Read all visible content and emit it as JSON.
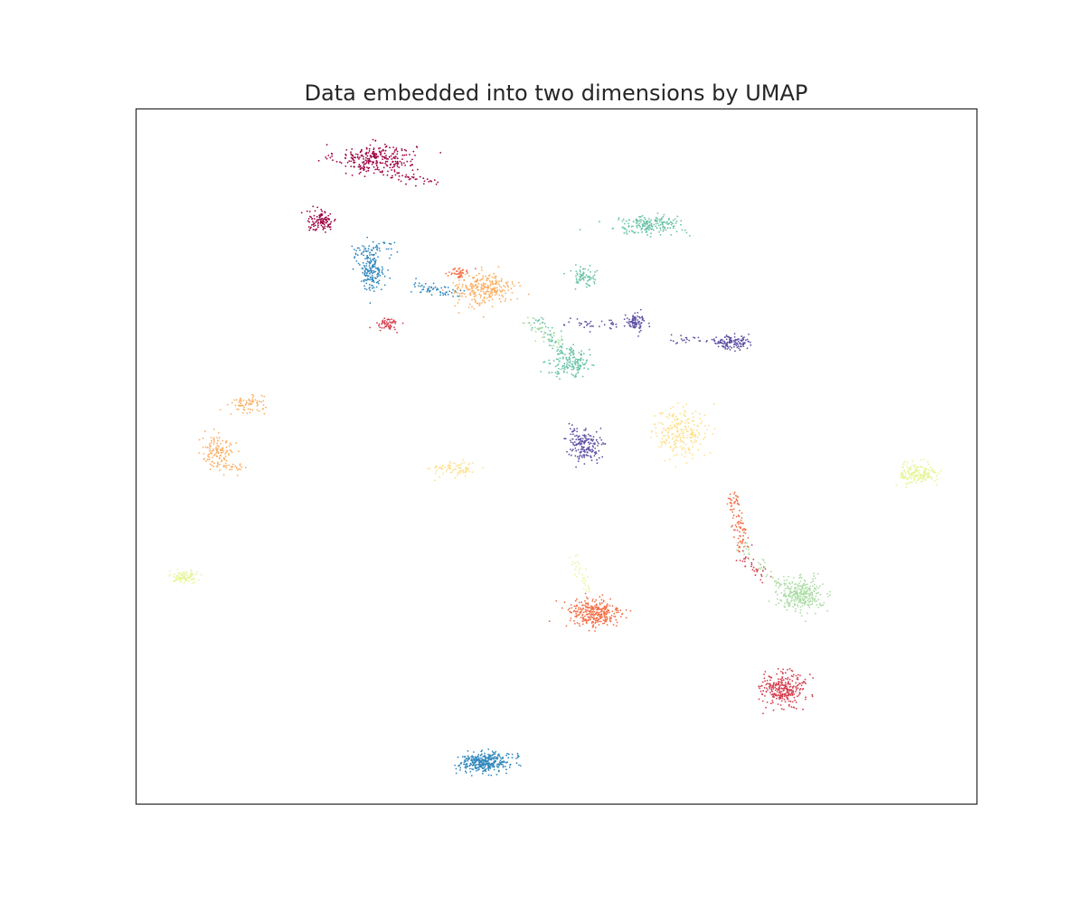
{
  "chart_data": {
    "type": "scatter",
    "title": "Data embedded into two dimensions by UMAP",
    "xlabel": "",
    "ylabel": "",
    "xlim": [
      0,
      100
    ],
    "ylim": [
      0,
      100
    ],
    "ticks": "none",
    "grid": false,
    "legend": "none",
    "colormap": "Spectral",
    "clusters": [
      {
        "color": "#9e0142",
        "shape": "blob",
        "center": [
          28.5,
          93.0
        ],
        "spread": [
          3.2,
          1.3
        ],
        "count": 260
      },
      {
        "color": "#9e0142",
        "shape": "streak",
        "from": [
          26.0,
          91.5
        ],
        "to": [
          36.0,
          89.5
        ],
        "width": 0.4,
        "count": 60
      },
      {
        "color": "#9e0142",
        "shape": "blob",
        "center": [
          22.0,
          83.9
        ],
        "spread": [
          1.2,
          1.0
        ],
        "count": 110
      },
      {
        "color": "#3288bd",
        "shape": "blob",
        "center": [
          28.0,
          77.0
        ],
        "spread": [
          1.0,
          2.0
        ],
        "count": 180
      },
      {
        "color": "#3288bd",
        "shape": "streak",
        "from": [
          26.5,
          79.5
        ],
        "to": [
          30.5,
          80.5
        ],
        "width": 0.5,
        "count": 40
      },
      {
        "color": "#3288bd",
        "shape": "streak",
        "from": [
          33.0,
          74.5
        ],
        "to": [
          38.5,
          73.5
        ],
        "width": 0.4,
        "count": 60
      },
      {
        "color": "#3288bd",
        "shape": "blob",
        "center": [
          41.4,
          5.8
        ],
        "spread": [
          2.0,
          0.9
        ],
        "count": 330
      },
      {
        "color": "#3288bd",
        "shape": "streak",
        "from": [
          43.0,
          6.5
        ],
        "to": [
          45.6,
          6.9
        ],
        "width": 0.25,
        "count": 15
      },
      {
        "color": "#fdae61",
        "shape": "blob",
        "center": [
          41.5,
          74.2
        ],
        "spread": [
          2.4,
          1.6
        ],
        "count": 260
      },
      {
        "color": "#fdae61",
        "shape": "blob",
        "center": [
          13.3,
          57.5
        ],
        "spread": [
          1.6,
          0.9
        ],
        "count": 70
      },
      {
        "color": "#fdae61",
        "shape": "blob",
        "center": [
          9.5,
          50.5
        ],
        "spread": [
          1.3,
          1.9
        ],
        "count": 120
      },
      {
        "color": "#fdae61",
        "shape": "streak",
        "from": [
          9.5,
          48.5
        ],
        "to": [
          12.9,
          48.1
        ],
        "width": 0.3,
        "count": 25
      },
      {
        "color": "#f46d43",
        "shape": "blob",
        "center": [
          38.5,
          76.5
        ],
        "spread": [
          0.8,
          0.5
        ],
        "count": 40
      },
      {
        "color": "#f46d43",
        "shape": "blob",
        "center": [
          54.5,
          27.3
        ],
        "spread": [
          2.2,
          1.5
        ],
        "count": 300
      },
      {
        "color": "#f46d43",
        "shape": "streak",
        "from": [
          71.0,
          44.2
        ],
        "to": [
          72.3,
          36.5
        ],
        "width": 0.45,
        "count": 90
      },
      {
        "color": "#d53e4f",
        "shape": "blob",
        "center": [
          30.0,
          69.0
        ],
        "spread": [
          0.9,
          0.7
        ],
        "count": 55
      },
      {
        "color": "#d53e4f",
        "shape": "blob",
        "center": [
          77.0,
          16.5
        ],
        "spread": [
          1.7,
          1.6
        ],
        "count": 280
      },
      {
        "color": "#d53e4f",
        "shape": "streak",
        "from": [
          71.8,
          36.0
        ],
        "to": [
          74.6,
          32.5
        ],
        "width": 0.5,
        "count": 35
      },
      {
        "color": "#66c2a5",
        "shape": "blob",
        "center": [
          61.0,
          83.3
        ],
        "spread": [
          2.8,
          0.9
        ],
        "count": 190
      },
      {
        "color": "#66c2a5",
        "shape": "blob",
        "center": [
          53.3,
          75.9
        ],
        "spread": [
          1.0,
          1.0
        ],
        "count": 70
      },
      {
        "color": "#66c2a5",
        "shape": "blob",
        "center": [
          51.8,
          63.5
        ],
        "spread": [
          1.6,
          1.4
        ],
        "count": 150
      },
      {
        "color": "#66c2a5",
        "shape": "streak",
        "from": [
          47.6,
          69.8
        ],
        "to": [
          51.4,
          64.0
        ],
        "width": 0.6,
        "count": 60
      },
      {
        "color": "#5e4fa2",
        "shape": "blob",
        "center": [
          59.5,
          69.3
        ],
        "spread": [
          1.0,
          0.8
        ],
        "count": 80
      },
      {
        "color": "#5e4fa2",
        "shape": "streak",
        "from": [
          51.0,
          69.0
        ],
        "to": [
          57.5,
          69.0
        ],
        "width": 0.3,
        "count": 35
      },
      {
        "color": "#5e4fa2",
        "shape": "blob",
        "center": [
          71.0,
          66.4
        ],
        "spread": [
          1.3,
          0.7
        ],
        "count": 120
      },
      {
        "color": "#5e4fa2",
        "shape": "streak",
        "from": [
          63.5,
          67.0
        ],
        "to": [
          69.5,
          66.5
        ],
        "width": 0.3,
        "count": 30
      },
      {
        "color": "#5e4fa2",
        "shape": "blob",
        "center": [
          53.5,
          51.5
        ],
        "spread": [
          1.2,
          1.4
        ],
        "count": 160
      },
      {
        "color": "#5e4fa2",
        "shape": "streak",
        "from": [
          51.5,
          54.5
        ],
        "to": [
          53.0,
          51.5
        ],
        "width": 0.4,
        "count": 20
      },
      {
        "color": "#fee08b",
        "shape": "blob",
        "center": [
          65.0,
          53.5
        ],
        "spread": [
          2.0,
          2.4
        ],
        "count": 230
      },
      {
        "color": "#fee08b",
        "shape": "blob",
        "center": [
          38.0,
          48.2
        ],
        "spread": [
          1.6,
          0.8
        ],
        "count": 80
      },
      {
        "color": "#e6f598",
        "shape": "blob",
        "center": [
          93.2,
          47.5
        ],
        "spread": [
          1.5,
          1.0
        ],
        "count": 180
      },
      {
        "color": "#e6f598",
        "shape": "blob",
        "center": [
          5.7,
          32.6
        ],
        "spread": [
          0.9,
          0.6
        ],
        "count": 90
      },
      {
        "color": "#e6f598",
        "shape": "streak",
        "from": [
          52.0,
          35.5
        ],
        "to": [
          54.0,
          30.0
        ],
        "width": 0.3,
        "count": 30
      },
      {
        "color": "#abdda4",
        "shape": "blob",
        "center": [
          79.2,
          30.0
        ],
        "spread": [
          1.8,
          1.5
        ],
        "count": 300
      },
      {
        "color": "#abdda4",
        "shape": "streak",
        "from": [
          46.5,
          69.5
        ],
        "to": [
          50.5,
          66.0
        ],
        "width": 0.5,
        "count": 40
      },
      {
        "color": "#abdda4",
        "shape": "streak",
        "from": [
          72.0,
          37.5
        ],
        "to": [
          77.0,
          31.0
        ],
        "width": 0.4,
        "count": 40
      }
    ]
  }
}
